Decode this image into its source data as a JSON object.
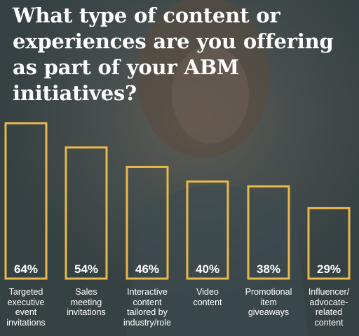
{
  "title": "What type of content or experiences are you offering as part of your ABM initiatives?",
  "colors": {
    "bar_outline": "#e8b84a",
    "text": "#ffffff"
  },
  "chart_data": {
    "type": "bar",
    "title": "What type of content or experiences are you offering as part of your ABM initiatives?",
    "categories": [
      "Targeted executive event invitations",
      "Sales meeting invitations",
      "Interactive content tailored by industry/role",
      "Video content",
      "Promotional item giveaways",
      "Influencer/ advocate-related content"
    ],
    "category_lines": [
      [
        "Targeted",
        "executive",
        "event",
        "invitations"
      ],
      [
        "Sales",
        "meeting",
        "invitations"
      ],
      [
        "Interactive",
        "content",
        "tailored by",
        "industry/role"
      ],
      [
        "Video",
        "content"
      ],
      [
        "Promotional",
        "item",
        "giveaways"
      ],
      [
        "Influencer/",
        "advocate-",
        "related",
        "content"
      ]
    ],
    "values": [
      64,
      54,
      46,
      40,
      38,
      29
    ],
    "value_labels": [
      "64%",
      "54%",
      "46%",
      "40%",
      "38%",
      "29%"
    ],
    "unit": "%",
    "ylim": [
      0,
      64
    ],
    "grid": false,
    "legend": "none"
  }
}
